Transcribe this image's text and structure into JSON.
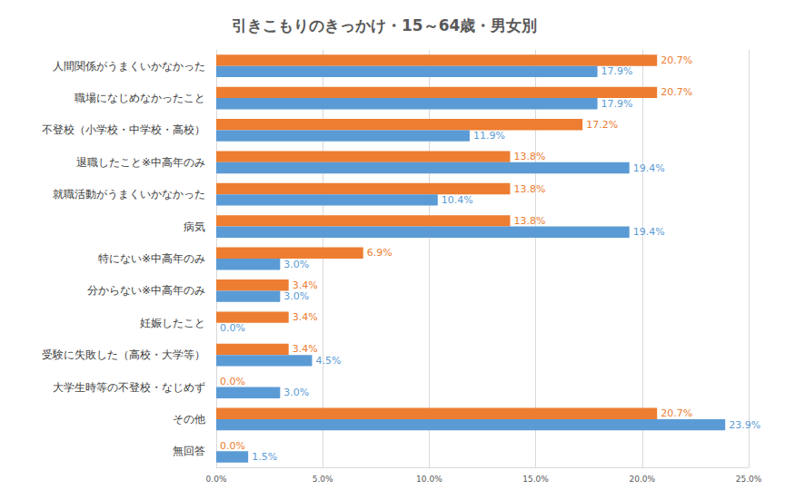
{
  "chart_data": {
    "type": "bar",
    "orientation": "horizontal",
    "title": "引きこもりのきっかけ・15～64歳・男女別",
    "categories": [
      "人間関係がうまくいかなかった",
      "職場になじめなかったこと",
      "不登校（小学校・中学校・高校）",
      "退職したこと※中高年のみ",
      "就職活動がうまくいかなかった",
      "病気",
      "特にない※中高年のみ",
      "分からない※中高年のみ",
      "妊娠したこと",
      "受験に失敗した（高校・大学等）",
      "大学生時等の不登校・なじめず",
      "その他",
      "無回答"
    ],
    "series": [
      {
        "color": "#ed7d31",
        "values": [
          20.7,
          20.7,
          17.2,
          13.8,
          13.8,
          13.8,
          6.9,
          3.4,
          3.4,
          3.4,
          0.0,
          20.7,
          0.0
        ],
        "value_labels": [
          "20.7%",
          "20.7%",
          "17.2%",
          "13.8%",
          "13.8%",
          "13.8%",
          "6.9%",
          "3.4%",
          "3.4%",
          "3.4%",
          "0.0%",
          "20.7%",
          "0.0%"
        ]
      },
      {
        "color": "#5b9bd5",
        "values": [
          17.9,
          17.9,
          11.9,
          19.4,
          10.4,
          19.4,
          3.0,
          3.0,
          0.0,
          4.5,
          3.0,
          23.9,
          1.5
        ],
        "value_labels": [
          "17.9%",
          "17.9%",
          "11.9%",
          "19.4%",
          "10.4%",
          "19.4%",
          "3.0%",
          "3.0%",
          "0.0%",
          "4.5%",
          "3.0%",
          "23.9%",
          "1.5%"
        ]
      }
    ],
    "xlim": [
      0,
      25
    ],
    "xticks": [
      {
        "value": 0,
        "label": "0.0%"
      },
      {
        "value": 5,
        "label": "5.0%"
      },
      {
        "value": 10,
        "label": "10.0%"
      },
      {
        "value": 15,
        "label": "15.0%"
      },
      {
        "value": 20,
        "label": "20.0%"
      },
      {
        "value": 25,
        "label": "25.0%"
      }
    ],
    "grid": true,
    "data_labels": true
  }
}
